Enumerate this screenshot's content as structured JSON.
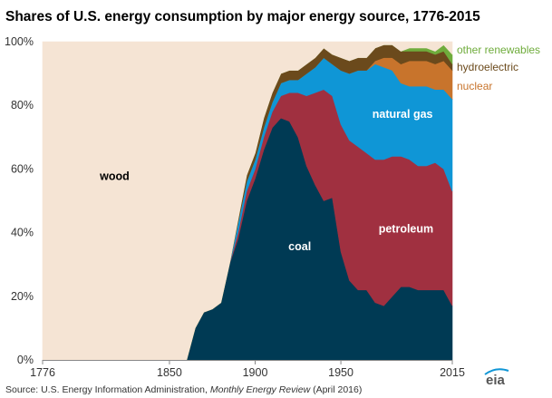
{
  "title": "Shares of U.S. energy consumption by major energy source, 1776-2015",
  "source": {
    "prefix": "Source: U.S. Energy Information Administration, ",
    "publication": "Monthly Energy Review",
    "suffix": " (April 2016)"
  },
  "logo_text": "eia",
  "chart_data": {
    "type": "area",
    "stacked": true,
    "xlim": [
      1776,
      2015
    ],
    "ylim": [
      0,
      100
    ],
    "x_ticks": [
      1776,
      1850,
      1900,
      1950,
      2015
    ],
    "x_tick_labels": [
      "1776",
      "1850",
      "1900",
      "1950",
      "2015"
    ],
    "y_ticks": [
      0,
      20,
      40,
      60,
      80,
      100
    ],
    "y_tick_labels": [
      "0%",
      "20%",
      "40%",
      "60%",
      "80%",
      "100%"
    ],
    "x": [
      1776,
      1850,
      1860,
      1865,
      1870,
      1875,
      1880,
      1885,
      1890,
      1895,
      1900,
      1905,
      1910,
      1915,
      1920,
      1925,
      1930,
      1935,
      1940,
      1945,
      1950,
      1955,
      1960,
      1965,
      1970,
      1975,
      1980,
      1985,
      1990,
      1995,
      2000,
      2005,
      2010,
      2015
    ],
    "series": [
      {
        "name": "coal",
        "color": "#003a54",
        "values": [
          0,
          0,
          0,
          10,
          15,
          16,
          18,
          30,
          38,
          50,
          57,
          66,
          73,
          76,
          75,
          70,
          61,
          55,
          50,
          51,
          34,
          25,
          22,
          22,
          18,
          17,
          20,
          23,
          23,
          22,
          22,
          22,
          22,
          17
        ]
      },
      {
        "name": "petroleum",
        "color": "#a03040",
        "values": [
          0,
          0,
          0,
          0,
          0,
          0,
          0,
          0,
          2,
          3,
          3,
          4,
          5,
          7,
          9,
          14,
          22,
          29,
          35,
          32,
          40,
          44,
          45,
          43,
          45,
          46,
          44,
          41,
          40,
          39,
          39,
          40,
          38,
          36
        ]
      },
      {
        "name": "natural gas",
        "color": "#0f96d6",
        "values": [
          0,
          0,
          0,
          0,
          0,
          0,
          0,
          0,
          3,
          3,
          3,
          3,
          3,
          4,
          4,
          4,
          7,
          8,
          10,
          10,
          17,
          21,
          24,
          26,
          30,
          29,
          27,
          23,
          23,
          25,
          25,
          23,
          25,
          29
        ]
      },
      {
        "name": "nuclear",
        "color": "#c8742c",
        "values": [
          0,
          0,
          0,
          0,
          0,
          0,
          0,
          0,
          0,
          0,
          0,
          0,
          0,
          0,
          0,
          0,
          0,
          0,
          0,
          0,
          0,
          0,
          0,
          0,
          1,
          3,
          4,
          6,
          8,
          8,
          8,
          8,
          9,
          9
        ]
      },
      {
        "name": "hydroelectric",
        "color": "#6b4a1c",
        "values": [
          0,
          0,
          0,
          0,
          0,
          0,
          0,
          0,
          1,
          2,
          2,
          3,
          3,
          3,
          3,
          3,
          3,
          3,
          3,
          3,
          4,
          4,
          4,
          4,
          4,
          4,
          4,
          4,
          3,
          3,
          3,
          3,
          3,
          2
        ]
      },
      {
        "name": "other renewables",
        "color": "#6fac3c",
        "values": [
          0,
          0,
          0,
          0,
          0,
          0,
          0,
          0,
          0,
          0,
          0,
          0,
          0,
          0,
          0,
          0,
          0,
          0,
          0,
          0,
          0,
          0,
          0,
          0,
          0,
          0,
          0,
          0,
          1,
          1,
          1,
          1,
          2,
          3
        ]
      },
      {
        "name": "wood",
        "color": "#f5e4d4",
        "values": [
          100,
          100,
          100,
          90,
          85,
          84,
          82,
          70,
          56,
          42,
          35,
          24,
          16,
          10,
          9,
          9,
          7,
          5,
          2,
          4,
          5,
          6,
          5,
          5,
          2,
          1,
          1,
          3,
          2,
          2,
          2,
          3,
          1,
          4
        ]
      }
    ],
    "area_labels": [
      {
        "series": "wood",
        "text": "wood",
        "x": 1818,
        "y": 56.5,
        "color": "#000000"
      },
      {
        "series": "coal",
        "text": "coal",
        "x": 1926,
        "y": 34.5,
        "color": "#ffffff"
      },
      {
        "series": "petroleum",
        "text": "petroleum",
        "x": 1988,
        "y": 40,
        "color": "#ffffff"
      },
      {
        "series": "natural gas",
        "text": "natural gas",
        "x": 1986,
        "y": 76,
        "color": "#ffffff"
      }
    ],
    "legend_labels": [
      {
        "series": "other renewables",
        "text": "other renewables",
        "color": "#6fac3c",
        "y": 97.5
      },
      {
        "series": "hydroelectric",
        "text": "hydroelectric",
        "color": "#6b4a1c",
        "y": 92
      },
      {
        "series": "nuclear",
        "text": "nuclear",
        "color": "#c8742c",
        "y": 86
      }
    ]
  }
}
